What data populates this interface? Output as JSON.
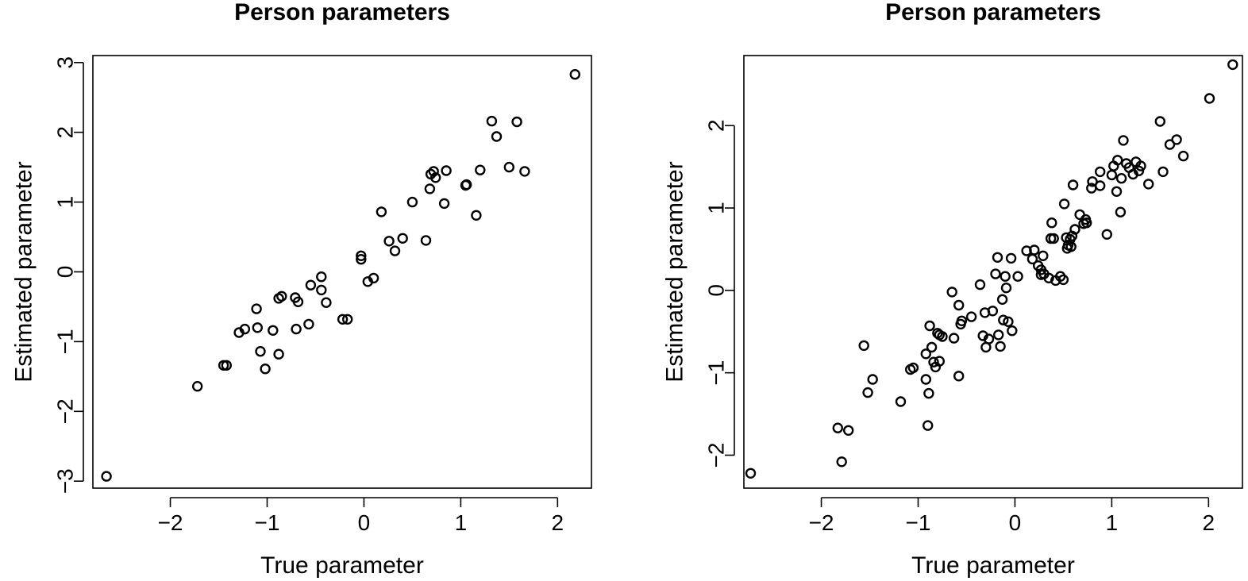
{
  "chart_data": [
    {
      "type": "scatter",
      "title": "Person parameters",
      "xlabel": "True parameter",
      "ylabel": "Estimated parameter",
      "xlim": [
        -2.8,
        2.35
      ],
      "ylim": [
        -3.1,
        3.1
      ],
      "xticks": [
        -2,
        -1,
        0,
        1,
        2
      ],
      "yticks": [
        -3,
        -2,
        -1,
        0,
        1,
        2,
        3
      ],
      "xtick_labels": [
        "−2",
        "−1",
        "0",
        "1",
        "2"
      ],
      "ytick_labels": [
        "−3",
        "−2",
        "−1",
        "0",
        "1",
        "2",
        "3"
      ],
      "grid": false,
      "points": [
        [
          -2.66,
          -2.93
        ],
        [
          -1.72,
          -1.64
        ],
        [
          -1.45,
          -1.34
        ],
        [
          -1.42,
          -1.34
        ],
        [
          -1.29,
          -0.87
        ],
        [
          -1.23,
          -0.82
        ],
        [
          -1.11,
          -0.53
        ],
        [
          -1.1,
          -0.8
        ],
        [
          -1.07,
          -1.14
        ],
        [
          -1.02,
          -1.39
        ],
        [
          -0.94,
          -0.84
        ],
        [
          -0.88,
          -0.38
        ],
        [
          -0.88,
          -1.18
        ],
        [
          -0.85,
          -0.35
        ],
        [
          -0.71,
          -0.37
        ],
        [
          -0.7,
          -0.82
        ],
        [
          -0.68,
          -0.43
        ],
        [
          -0.57,
          -0.75
        ],
        [
          -0.55,
          -0.19
        ],
        [
          -0.44,
          -0.07
        ],
        [
          -0.44,
          -0.26
        ],
        [
          -0.39,
          -0.44
        ],
        [
          -0.22,
          -0.68
        ],
        [
          -0.17,
          -0.68
        ],
        [
          -0.03,
          0.23
        ],
        [
          -0.03,
          0.18
        ],
        [
          0.04,
          -0.14
        ],
        [
          0.1,
          -0.09
        ],
        [
          0.18,
          0.86
        ],
        [
          0.26,
          0.44
        ],
        [
          0.32,
          0.3
        ],
        [
          0.4,
          0.48
        ],
        [
          0.5,
          1.0
        ],
        [
          0.64,
          0.45
        ],
        [
          0.68,
          1.19
        ],
        [
          0.69,
          1.4
        ],
        [
          0.72,
          1.44
        ],
        [
          0.74,
          1.35
        ],
        [
          0.83,
          0.98
        ],
        [
          0.85,
          1.45
        ],
        [
          1.05,
          1.24
        ],
        [
          1.06,
          1.25
        ],
        [
          1.16,
          0.81
        ],
        [
          1.2,
          1.46
        ],
        [
          1.32,
          2.16
        ],
        [
          1.37,
          1.94
        ],
        [
          1.5,
          1.5
        ],
        [
          1.58,
          2.15
        ],
        [
          1.66,
          1.44
        ],
        [
          2.18,
          2.83
        ]
      ]
    },
    {
      "type": "scatter",
      "title": "Person parameters",
      "xlabel": "True parameter",
      "ylabel": "Estimated parameter",
      "xlim": [
        -2.8,
        2.35
      ],
      "ylim": [
        -2.4,
        2.85
      ],
      "xticks": [
        -2,
        -1,
        0,
        1,
        2
      ],
      "yticks": [
        -2,
        -1,
        0,
        1,
        2
      ],
      "xtick_labels": [
        "−2",
        "−1",
        "0",
        "1",
        "2"
      ],
      "ytick_labels": [
        "−2",
        "−1",
        "0",
        "1",
        "2"
      ],
      "grid": false,
      "points": [
        [
          -2.73,
          -2.22
        ],
        [
          -1.83,
          -1.67
        ],
        [
          -1.79,
          -2.08
        ],
        [
          -1.72,
          -1.7
        ],
        [
          -1.56,
          -0.67
        ],
        [
          -1.52,
          -1.24
        ],
        [
          -1.47,
          -1.08
        ],
        [
          -1.18,
          -1.35
        ],
        [
          -1.08,
          -0.96
        ],
        [
          -1.05,
          -0.94
        ],
        [
          -0.92,
          -1.08
        ],
        [
          -0.92,
          -0.77
        ],
        [
          -0.9,
          -1.64
        ],
        [
          -0.89,
          -1.25
        ],
        [
          -0.88,
          -0.43
        ],
        [
          -0.86,
          -0.69
        ],
        [
          -0.84,
          -0.87
        ],
        [
          -0.82,
          -0.93
        ],
        [
          -0.8,
          -0.52
        ],
        [
          -0.78,
          -0.86
        ],
        [
          -0.78,
          -0.54
        ],
        [
          -0.75,
          -0.56
        ],
        [
          -0.65,
          -0.02
        ],
        [
          -0.63,
          -0.58
        ],
        [
          -0.58,
          -0.18
        ],
        [
          -0.58,
          -1.04
        ],
        [
          -0.56,
          -0.41
        ],
        [
          -0.55,
          -0.37
        ],
        [
          -0.45,
          -0.32
        ],
        [
          -0.36,
          0.07
        ],
        [
          -0.33,
          -0.55
        ],
        [
          -0.31,
          -0.27
        ],
        [
          -0.3,
          -0.69
        ],
        [
          -0.27,
          -0.59
        ],
        [
          -0.23,
          -0.25
        ],
        [
          -0.2,
          0.2
        ],
        [
          -0.18,
          0.4
        ],
        [
          -0.17,
          -0.54
        ],
        [
          -0.15,
          -0.68
        ],
        [
          -0.13,
          -0.11
        ],
        [
          -0.12,
          -0.36
        ],
        [
          -0.1,
          0.17
        ],
        [
          -0.09,
          0.03
        ],
        [
          -0.07,
          -0.38
        ],
        [
          -0.04,
          0.39
        ],
        [
          -0.03,
          -0.49
        ],
        [
          0.03,
          0.17
        ],
        [
          0.12,
          0.48
        ],
        [
          0.18,
          0.38
        ],
        [
          0.2,
          0.49
        ],
        [
          0.24,
          0.3
        ],
        [
          0.27,
          0.25
        ],
        [
          0.27,
          0.19
        ],
        [
          0.29,
          0.42
        ],
        [
          0.3,
          0.2
        ],
        [
          0.35,
          0.15
        ],
        [
          0.37,
          0.63
        ],
        [
          0.38,
          0.82
        ],
        [
          0.4,
          0.63
        ],
        [
          0.42,
          0.12
        ],
        [
          0.47,
          0.17
        ],
        [
          0.5,
          0.13
        ],
        [
          0.51,
          1.05
        ],
        [
          0.53,
          0.64
        ],
        [
          0.54,
          0.51
        ],
        [
          0.55,
          0.55
        ],
        [
          0.57,
          0.62
        ],
        [
          0.58,
          0.53
        ],
        [
          0.59,
          0.66
        ],
        [
          0.6,
          1.28
        ],
        [
          0.62,
          0.74
        ],
        [
          0.67,
          0.92
        ],
        [
          0.71,
          0.81
        ],
        [
          0.73,
          0.86
        ],
        [
          0.74,
          0.82
        ],
        [
          0.79,
          1.24
        ],
        [
          0.8,
          1.32
        ],
        [
          0.88,
          1.44
        ],
        [
          0.88,
          1.27
        ],
        [
          0.95,
          0.68
        ],
        [
          1.0,
          1.4
        ],
        [
          1.02,
          1.51
        ],
        [
          1.05,
          1.2
        ],
        [
          1.06,
          1.58
        ],
        [
          1.09,
          0.95
        ],
        [
          1.1,
          1.36
        ],
        [
          1.12,
          1.82
        ],
        [
          1.15,
          1.54
        ],
        [
          1.18,
          1.49
        ],
        [
          1.22,
          1.41
        ],
        [
          1.25,
          1.56
        ],
        [
          1.28,
          1.45
        ],
        [
          1.3,
          1.51
        ],
        [
          1.38,
          1.29
        ],
        [
          1.5,
          2.05
        ],
        [
          1.53,
          1.44
        ],
        [
          1.6,
          1.77
        ],
        [
          1.67,
          1.83
        ],
        [
          1.74,
          1.63
        ],
        [
          2.01,
          2.33
        ],
        [
          2.25,
          2.74
        ]
      ]
    }
  ]
}
